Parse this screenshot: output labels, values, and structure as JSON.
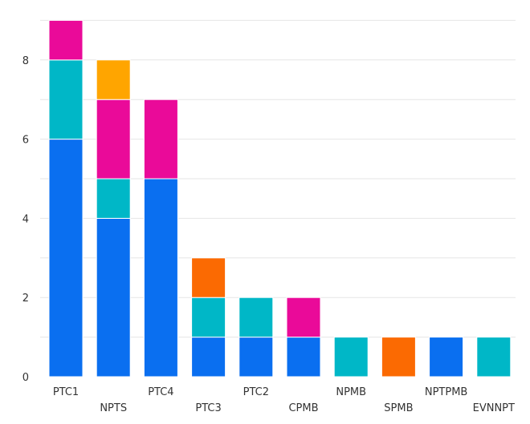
{
  "chart_data": {
    "type": "bar",
    "stacked": true,
    "title": "",
    "xlabel": "",
    "ylabel": "",
    "ylim": [
      0,
      9
    ],
    "yticks": [
      0,
      2,
      4,
      6,
      8
    ],
    "grid": true,
    "legend": "none",
    "categories": [
      "PTC1",
      "NPTS",
      "PTC4",
      "PTC3",
      "PTC2",
      "CPMB",
      "NPMB",
      "SPMB",
      "NPTPMB",
      "EVNNPT"
    ],
    "series": [
      {
        "name": "blue",
        "color": "#0a6ff0",
        "values": [
          6,
          4,
          5,
          1,
          1,
          1,
          0,
          0,
          1,
          0
        ]
      },
      {
        "name": "teal",
        "color": "#00b7c7",
        "values": [
          2,
          1,
          0,
          1,
          1,
          0,
          1,
          0,
          0,
          1
        ]
      },
      {
        "name": "magenta",
        "color": "#ea0a99",
        "values": [
          1,
          2,
          2,
          0,
          0,
          1,
          0,
          0,
          0,
          0
        ]
      },
      {
        "name": "amber",
        "color": "#ffa500",
        "values": [
          0,
          1,
          0,
          0,
          0,
          0,
          0,
          0,
          0,
          0
        ]
      },
      {
        "name": "orange",
        "color": "#fb6a02",
        "values": [
          0,
          0,
          0,
          1,
          0,
          0,
          0,
          1,
          0,
          0
        ]
      }
    ]
  }
}
